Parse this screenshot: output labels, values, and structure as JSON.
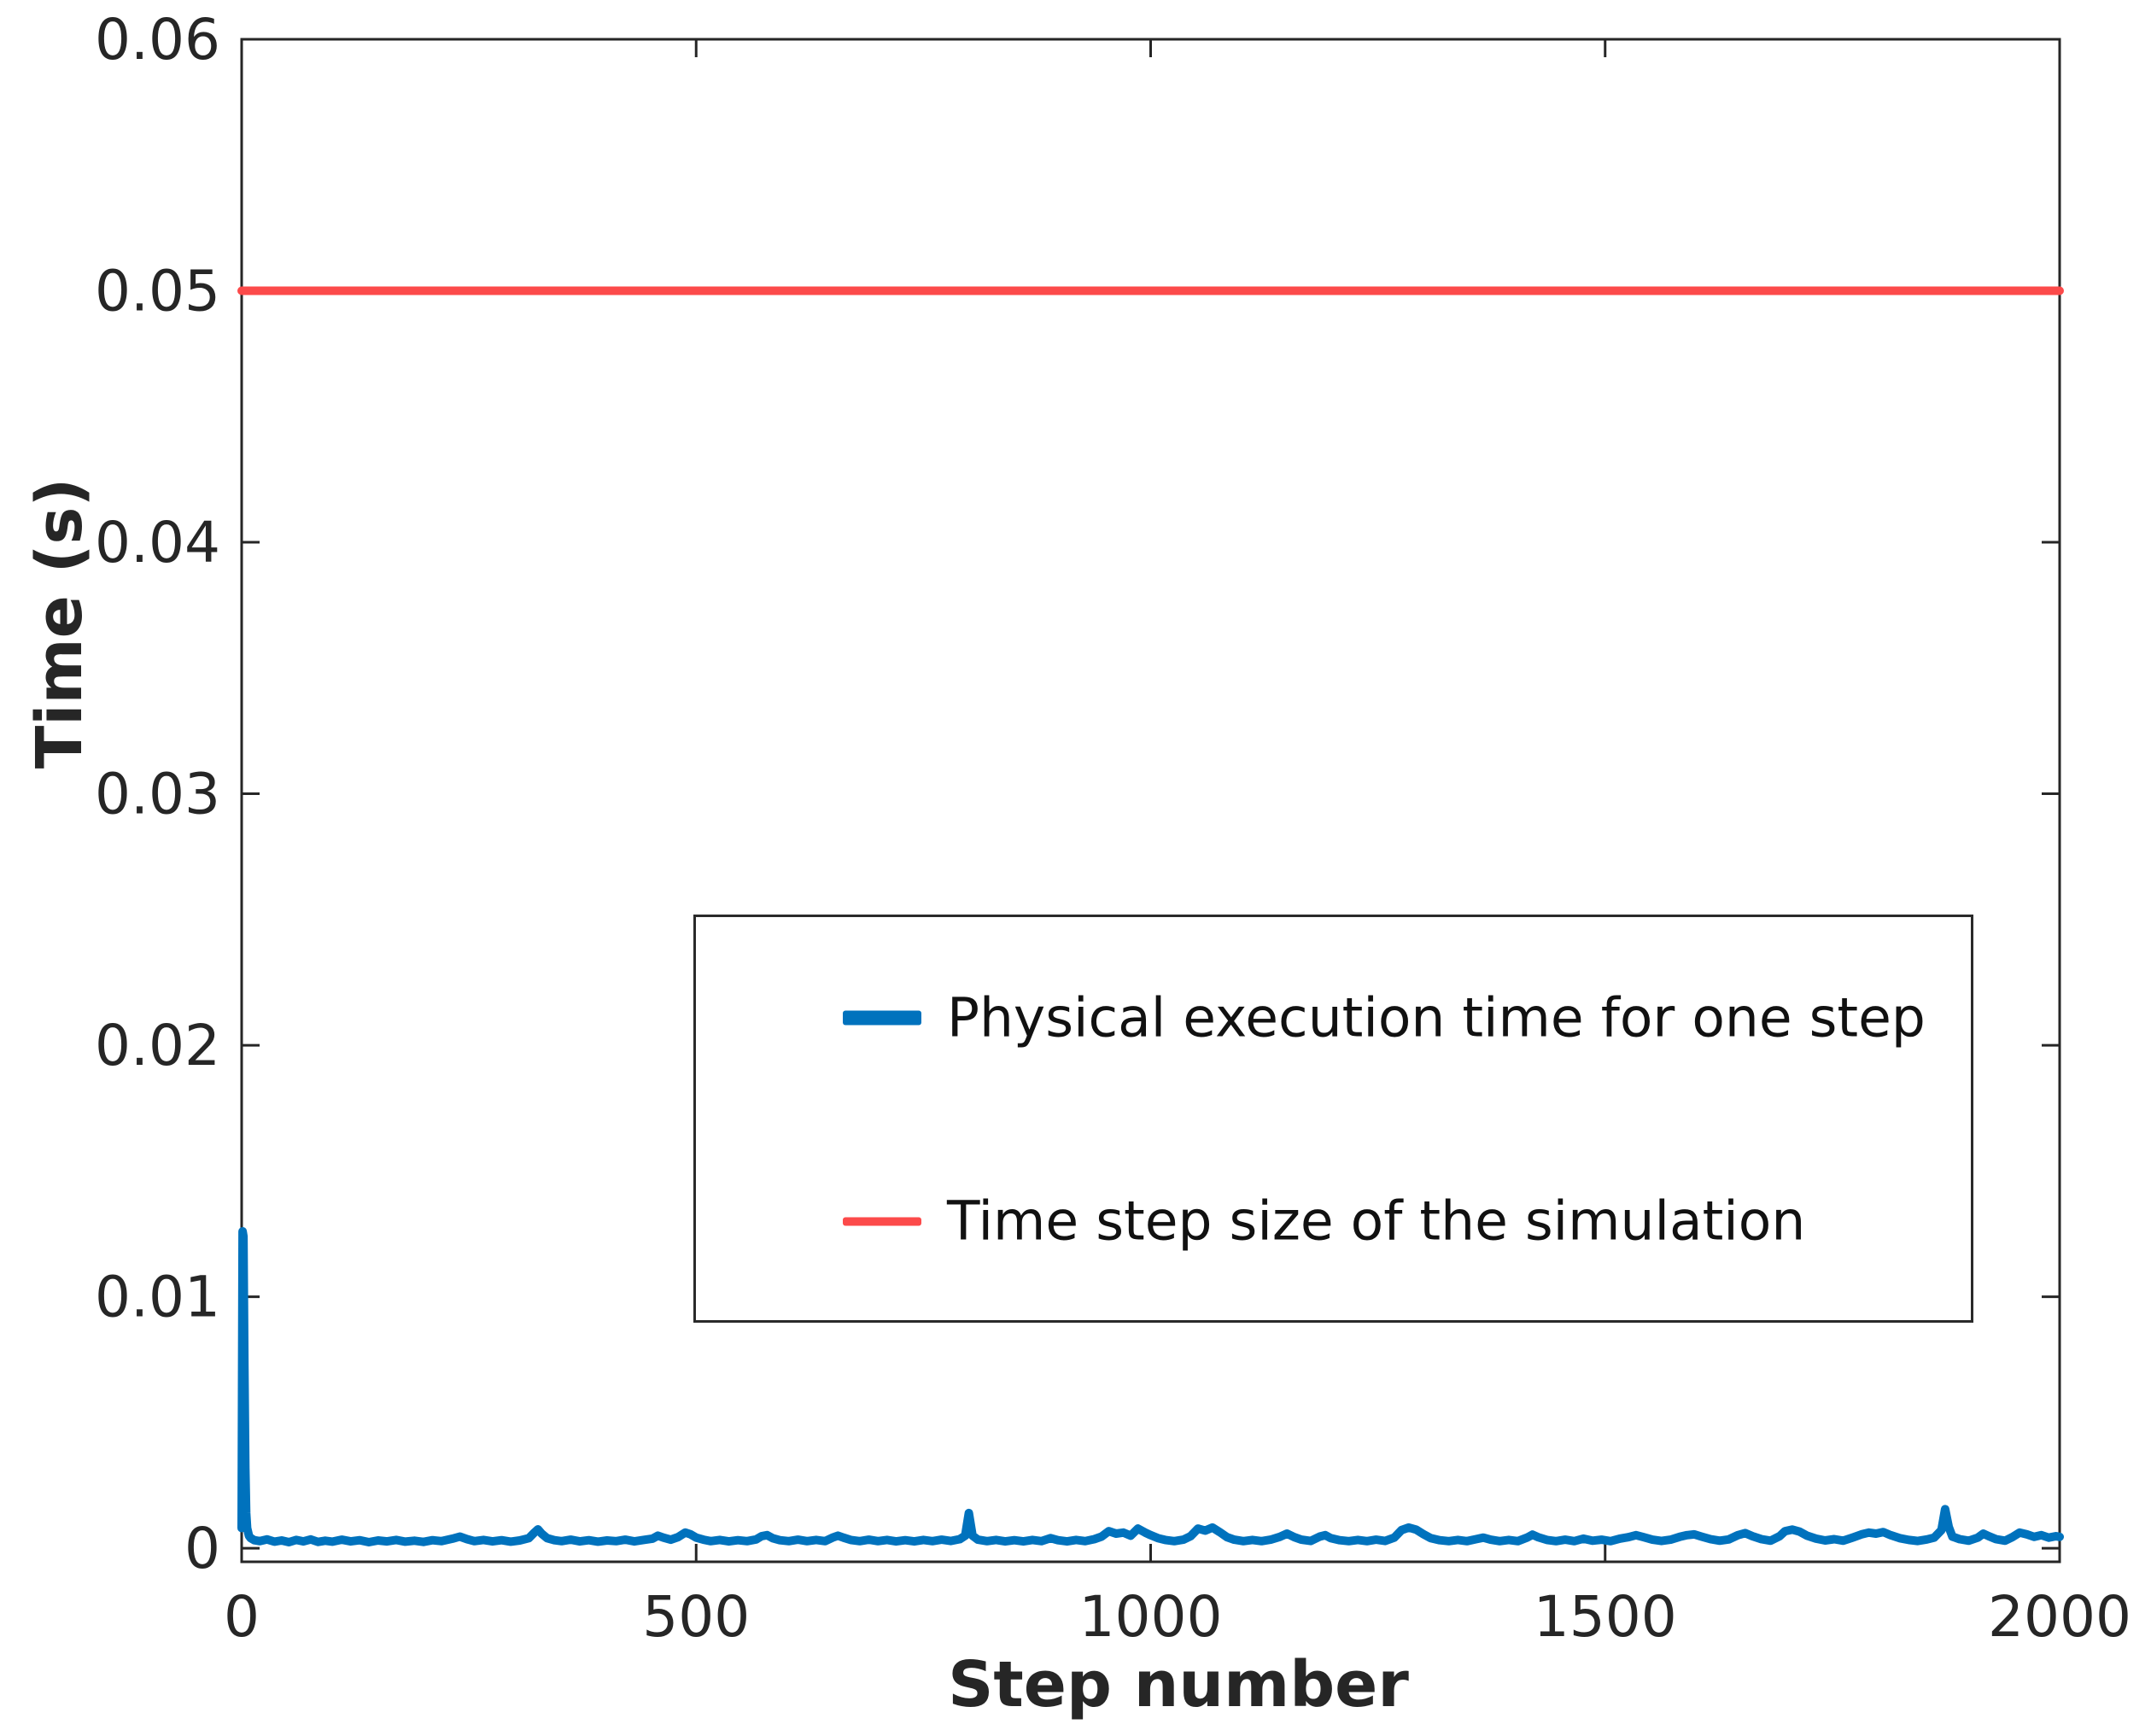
{
  "figure": {
    "background": "#ffffff",
    "text_color": "#262626"
  },
  "chart_data": {
    "type": "line",
    "title": "",
    "xlabel": "Step number",
    "ylabel": "Time (s)",
    "xlim": [
      0,
      2000
    ],
    "ylim": [
      -0.00054,
      0.06
    ],
    "x_ticks": [
      0,
      500,
      1000,
      1500,
      2000
    ],
    "y_ticks": [
      0,
      0.01,
      0.02,
      0.03,
      0.04,
      0.05,
      0.06
    ],
    "grid": false,
    "legend_position": "center",
    "axis_color": "#262626",
    "series": [
      {
        "name": "Physical execution time for one step",
        "color": "#0072bd",
        "width": 10,
        "points": [
          [
            0,
            0.0008
          ],
          [
            1,
            0.0126
          ],
          [
            2,
            0.0124
          ],
          [
            3,
            0.0072
          ],
          [
            4,
            0.0032
          ],
          [
            5,
            0.0014
          ],
          [
            6,
            0.0008
          ],
          [
            8,
            0.0005
          ],
          [
            10,
            0.0004
          ],
          [
            14,
            0.00032
          ],
          [
            20,
            0.00028
          ],
          [
            28,
            0.00035
          ],
          [
            36,
            0.00026
          ],
          [
            44,
            0.00031
          ],
          [
            52,
            0.00024
          ],
          [
            60,
            0.00033
          ],
          [
            68,
            0.00027
          ],
          [
            76,
            0.00035
          ],
          [
            84,
            0.00025
          ],
          [
            92,
            0.0003
          ],
          [
            100,
            0.00026
          ],
          [
            110,
            0.00034
          ],
          [
            120,
            0.00027
          ],
          [
            130,
            0.00032
          ],
          [
            140,
            0.00024
          ],
          [
            150,
            0.00031
          ],
          [
            160,
            0.00027
          ],
          [
            170,
            0.00033
          ],
          [
            180,
            0.00026
          ],
          [
            190,
            0.0003
          ],
          [
            200,
            0.00025
          ],
          [
            210,
            0.00032
          ],
          [
            220,
            0.00028
          ],
          [
            232,
            0.00038
          ],
          [
            240,
            0.00046
          ],
          [
            248,
            0.00036
          ],
          [
            256,
            0.00028
          ],
          [
            266,
            0.00033
          ],
          [
            276,
            0.00027
          ],
          [
            286,
            0.00032
          ],
          [
            296,
            0.00026
          ],
          [
            306,
            0.00031
          ],
          [
            316,
            0.0004
          ],
          [
            322,
            0.00062
          ],
          [
            326,
            0.00075
          ],
          [
            330,
            0.00058
          ],
          [
            336,
            0.0004
          ],
          [
            344,
            0.00032
          ],
          [
            352,
            0.00028
          ],
          [
            362,
            0.00034
          ],
          [
            372,
            0.00027
          ],
          [
            382,
            0.00032
          ],
          [
            392,
            0.00026
          ],
          [
            402,
            0.00031
          ],
          [
            412,
            0.00028
          ],
          [
            422,
            0.00034
          ],
          [
            432,
            0.00027
          ],
          [
            442,
            0.00033
          ],
          [
            452,
            0.00038
          ],
          [
            458,
            0.0005
          ],
          [
            464,
            0.00042
          ],
          [
            472,
            0.00034
          ],
          [
            480,
            0.00044
          ],
          [
            488,
            0.00062
          ],
          [
            494,
            0.00055
          ],
          [
            500,
            0.00042
          ],
          [
            508,
            0.00034
          ],
          [
            516,
            0.00028
          ],
          [
            526,
            0.00033
          ],
          [
            536,
            0.00027
          ],
          [
            546,
            0.00032
          ],
          [
            556,
            0.00028
          ],
          [
            566,
            0.00035
          ],
          [
            572,
            0.00048
          ],
          [
            578,
            0.00052
          ],
          [
            584,
            0.0004
          ],
          [
            592,
            0.00032
          ],
          [
            602,
            0.00028
          ],
          [
            612,
            0.00034
          ],
          [
            622,
            0.00028
          ],
          [
            632,
            0.00033
          ],
          [
            642,
            0.00028
          ],
          [
            650,
            0.00042
          ],
          [
            656,
            0.0005
          ],
          [
            662,
            0.00042
          ],
          [
            670,
            0.00033
          ],
          [
            680,
            0.00028
          ],
          [
            690,
            0.00034
          ],
          [
            700,
            0.00028
          ],
          [
            710,
            0.00033
          ],
          [
            720,
            0.00027
          ],
          [
            730,
            0.00032
          ],
          [
            740,
            0.00027
          ],
          [
            750,
            0.00033
          ],
          [
            760,
            0.00028
          ],
          [
            770,
            0.00034
          ],
          [
            780,
            0.00029
          ],
          [
            790,
            0.00036
          ],
          [
            796,
            0.0005
          ],
          [
            800,
            0.0014
          ],
          [
            804,
            0.0005
          ],
          [
            810,
            0.00034
          ],
          [
            820,
            0.00028
          ],
          [
            830,
            0.00033
          ],
          [
            840,
            0.00027
          ],
          [
            850,
            0.00032
          ],
          [
            860,
            0.00027
          ],
          [
            870,
            0.00033
          ],
          [
            880,
            0.00028
          ],
          [
            890,
            0.0004
          ],
          [
            898,
            0.00032
          ],
          [
            908,
            0.00027
          ],
          [
            918,
            0.00033
          ],
          [
            928,
            0.00028
          ],
          [
            938,
            0.00036
          ],
          [
            946,
            0.00046
          ],
          [
            954,
            0.00068
          ],
          [
            962,
            0.00058
          ],
          [
            970,
            0.00062
          ],
          [
            978,
            0.0005
          ],
          [
            986,
            0.00078
          ],
          [
            994,
            0.00062
          ],
          [
            1000,
            0.00052
          ],
          [
            1008,
            0.0004
          ],
          [
            1016,
            0.00033
          ],
          [
            1026,
            0.00028
          ],
          [
            1036,
            0.00034
          ],
          [
            1044,
            0.00048
          ],
          [
            1052,
            0.00078
          ],
          [
            1060,
            0.0007
          ],
          [
            1068,
            0.00082
          ],
          [
            1076,
            0.00064
          ],
          [
            1084,
            0.00044
          ],
          [
            1092,
            0.00034
          ],
          [
            1102,
            0.00028
          ],
          [
            1112,
            0.00033
          ],
          [
            1122,
            0.00028
          ],
          [
            1132,
            0.00034
          ],
          [
            1142,
            0.00045
          ],
          [
            1150,
            0.00058
          ],
          [
            1158,
            0.00044
          ],
          [
            1166,
            0.00034
          ],
          [
            1176,
            0.00029
          ],
          [
            1186,
            0.00046
          ],
          [
            1192,
            0.00052
          ],
          [
            1198,
            0.0004
          ],
          [
            1208,
            0.00032
          ],
          [
            1218,
            0.00028
          ],
          [
            1228,
            0.00033
          ],
          [
            1238,
            0.00028
          ],
          [
            1248,
            0.00034
          ],
          [
            1258,
            0.00029
          ],
          [
            1268,
            0.00042
          ],
          [
            1276,
            0.00072
          ],
          [
            1284,
            0.00082
          ],
          [
            1292,
            0.00074
          ],
          [
            1300,
            0.00056
          ],
          [
            1308,
            0.0004
          ],
          [
            1318,
            0.00032
          ],
          [
            1328,
            0.00028
          ],
          [
            1338,
            0.00033
          ],
          [
            1348,
            0.00028
          ],
          [
            1358,
            0.00036
          ],
          [
            1366,
            0.00042
          ],
          [
            1374,
            0.00034
          ],
          [
            1384,
            0.00028
          ],
          [
            1394,
            0.00033
          ],
          [
            1404,
            0.00028
          ],
          [
            1414,
            0.00042
          ],
          [
            1420,
            0.00054
          ],
          [
            1426,
            0.00044
          ],
          [
            1436,
            0.00033
          ],
          [
            1446,
            0.00028
          ],
          [
            1456,
            0.00034
          ],
          [
            1466,
            0.00028
          ],
          [
            1476,
            0.00038
          ],
          [
            1486,
            0.0003
          ],
          [
            1496,
            0.00034
          ],
          [
            1506,
            0.00028
          ],
          [
            1516,
            0.00038
          ],
          [
            1526,
            0.00044
          ],
          [
            1534,
            0.00052
          ],
          [
            1542,
            0.00044
          ],
          [
            1552,
            0.00034
          ],
          [
            1562,
            0.00029
          ],
          [
            1572,
            0.00034
          ],
          [
            1582,
            0.00045
          ],
          [
            1590,
            0.00052
          ],
          [
            1598,
            0.00055
          ],
          [
            1606,
            0.00046
          ],
          [
            1616,
            0.00036
          ],
          [
            1626,
            0.0003
          ],
          [
            1636,
            0.00035
          ],
          [
            1646,
            0.00052
          ],
          [
            1654,
            0.0006
          ],
          [
            1662,
            0.00048
          ],
          [
            1672,
            0.00036
          ],
          [
            1682,
            0.0003
          ],
          [
            1692,
            0.00048
          ],
          [
            1698,
            0.00068
          ],
          [
            1706,
            0.00074
          ],
          [
            1714,
            0.00066
          ],
          [
            1722,
            0.0005
          ],
          [
            1732,
            0.00038
          ],
          [
            1742,
            0.00031
          ],
          [
            1752,
            0.00036
          ],
          [
            1762,
            0.0003
          ],
          [
            1772,
            0.00042
          ],
          [
            1782,
            0.00055
          ],
          [
            1790,
            0.00062
          ],
          [
            1798,
            0.00058
          ],
          [
            1806,
            0.00064
          ],
          [
            1814,
            0.00052
          ],
          [
            1824,
            0.0004
          ],
          [
            1834,
            0.00033
          ],
          [
            1844,
            0.00029
          ],
          [
            1854,
            0.00035
          ],
          [
            1862,
            0.00042
          ],
          [
            1870,
            0.00072
          ],
          [
            1874,
            0.00155
          ],
          [
            1878,
            0.00085
          ],
          [
            1882,
            0.00046
          ],
          [
            1890,
            0.00036
          ],
          [
            1900,
            0.0003
          ],
          [
            1910,
            0.00042
          ],
          [
            1916,
            0.00058
          ],
          [
            1922,
            0.00048
          ],
          [
            1930,
            0.00036
          ],
          [
            1940,
            0.0003
          ],
          [
            1948,
            0.00044
          ],
          [
            1956,
            0.00062
          ],
          [
            1964,
            0.00055
          ],
          [
            1972,
            0.00045
          ],
          [
            1980,
            0.00052
          ],
          [
            1988,
            0.00042
          ],
          [
            1996,
            0.00048
          ],
          [
            2000,
            0.00045
          ]
        ]
      },
      {
        "name": "Time step size of the simulation",
        "color": "#fc4a4a",
        "width": 10,
        "points": [
          [
            0,
            0.05
          ],
          [
            2000,
            0.05
          ]
        ]
      }
    ]
  }
}
